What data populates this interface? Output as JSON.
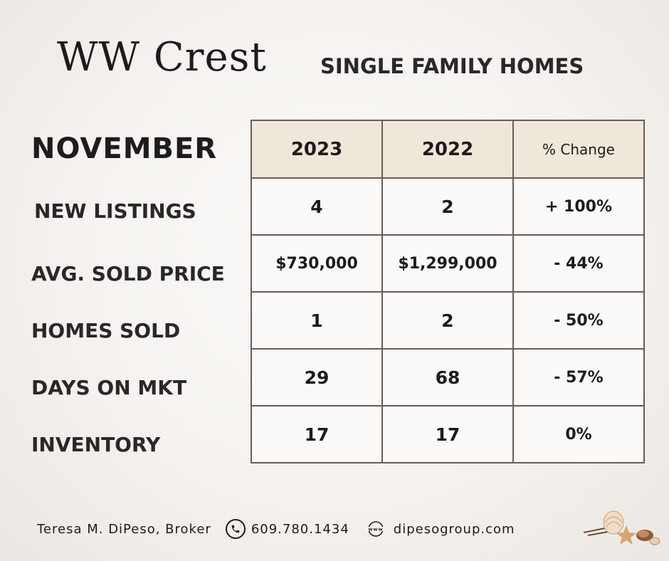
{
  "header": {
    "title": "WW Crest",
    "subtitle": "SINGLE FAMILY HOMES"
  },
  "month": "NOVEMBER",
  "table": {
    "columns": [
      "2023",
      "2022",
      "% Change"
    ],
    "rows": [
      {
        "label": "NEW LISTINGS",
        "v2023": "4",
        "v2022": "2",
        "change": "+ 100%"
      },
      {
        "label": "AVG. SOLD PRICE",
        "v2023": "$730,000",
        "v2022": "$1,299,000",
        "change": "- 44%"
      },
      {
        "label": "HOMES SOLD",
        "v2023": "1",
        "v2022": "2",
        "change": "- 50%"
      },
      {
        "label": "DAYS ON MKT",
        "v2023": "29",
        "v2022": "68",
        "change": "- 57%"
      },
      {
        "label": "INVENTORY",
        "v2023": "17",
        "v2022": "17",
        "change": "0%"
      }
    ]
  },
  "footer": {
    "broker": "Teresa M. DiPeso, Broker",
    "phone": "609.780.1434",
    "website": "dipesogroup.com",
    "phone_icon": "phone-icon",
    "www_icon": "www-icon",
    "decoration": "seashells-image"
  },
  "colors": {
    "header_cell": "#efe7da",
    "border": "#6c5b55",
    "text": "#1e1c1b"
  }
}
